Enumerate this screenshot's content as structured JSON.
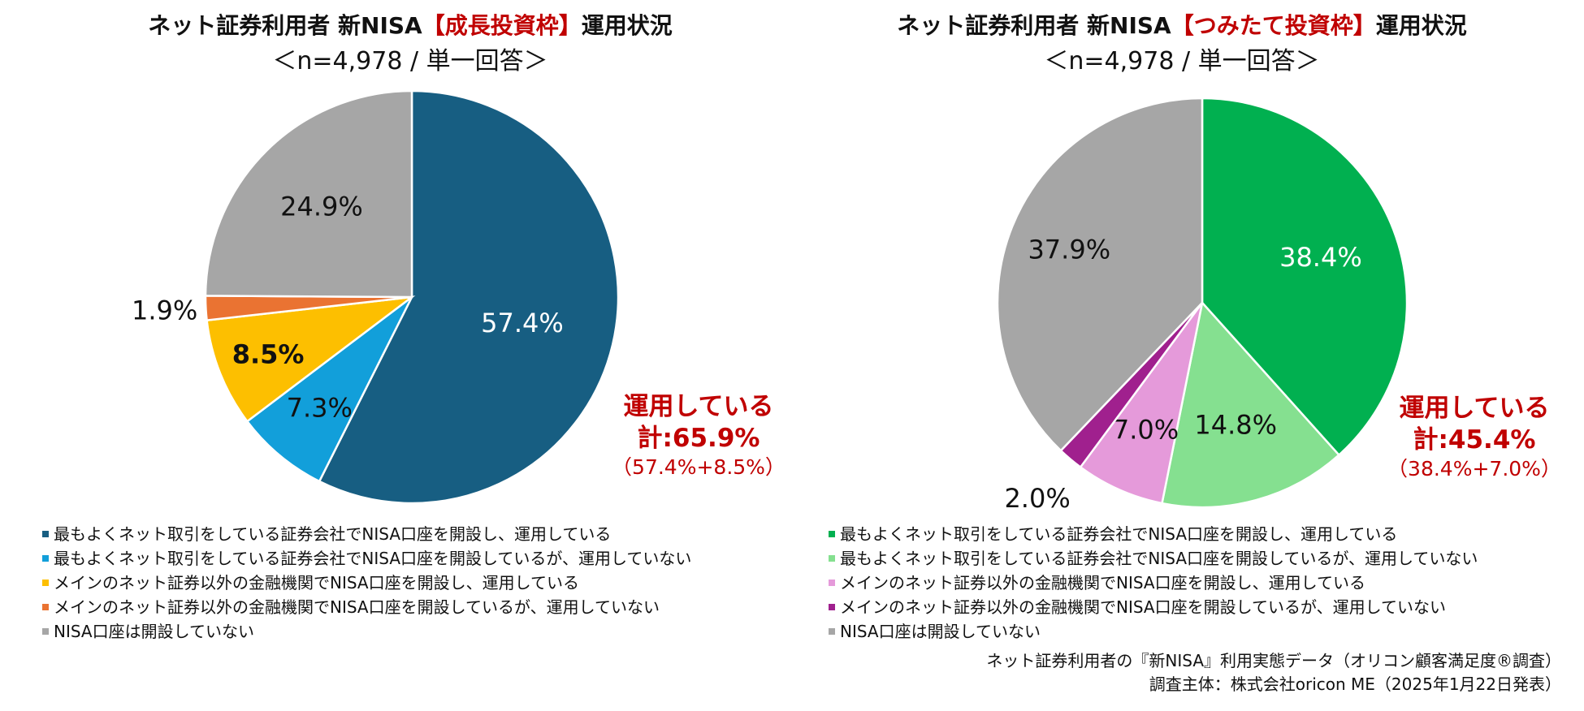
{
  "charts": [
    {
      "title_prefix": "ネット証券利用者  新NISA",
      "title_highlight": "【成長投資枠】",
      "title_suffix": "運用状況",
      "subtitle": "＜n=4,978 / 単一回答＞",
      "total_line1": "運用している",
      "total_line2": "計:65.9%",
      "total_line3": "（57.4%+8.5%）"
    },
    {
      "title_prefix": "ネット証券利用者 新NISA",
      "title_highlight": "【つみたて投資枠】",
      "title_suffix": "運用状況",
      "subtitle": "＜n=4,978 / 単一回答＞",
      "total_line1": "運用している",
      "total_line2": "計:45.4%",
      "total_line3": "（38.4%+7.0%）"
    }
  ],
  "chart_data": [
    {
      "type": "pie",
      "title": "ネット証券利用者 新NISA【成長投資枠】運用状況",
      "start": "12 o'clock, clockwise",
      "slices": [
        {
          "label": "最もよくネット取引をしている証券会社でNISA口座を開設し、運用している",
          "value": 57.4,
          "display": "57.4%",
          "color": "#175e82",
          "text_color": "#ffffff",
          "bold": false
        },
        {
          "label": "最もよくネット取引をしている証券会社でNISA口座を開設しているが、運用していない",
          "value": 7.3,
          "display": "7.3%",
          "color": "#129fda",
          "text_color": "#111111",
          "bold": false
        },
        {
          "label": "メインのネット証券以外の金融機関でNISA口座を開設し、運用している",
          "value": 8.5,
          "display": "8.5%",
          "color": "#fdbf00",
          "text_color": "#111111",
          "bold": true
        },
        {
          "label": "メインのネット証券以外の金融機関でNISA口座を開設しているが、運用していない",
          "value": 1.9,
          "display": "1.9%",
          "color": "#ea7332",
          "text_color": "#111111",
          "bold": false
        },
        {
          "label": "NISA口座は開設していない",
          "value": 24.9,
          "display": "24.9%",
          "color": "#a6a6a6",
          "text_color": "#111111",
          "bold": false
        }
      ]
    },
    {
      "type": "pie",
      "title": "ネット証券利用者 新NISA【つみたて投資枠】運用状況",
      "start": "12 o'clock, clockwise",
      "slices": [
        {
          "label": "最もよくネット取引をしている証券会社でNISA口座を開設し、運用している",
          "value": 38.4,
          "display": "38.4%",
          "color": "#01b050",
          "text_color": "#ffffff",
          "bold": false
        },
        {
          "label": "最もよくネット取引をしている証券会社でNISA口座を開設しているが、運用していない",
          "value": 14.8,
          "display": "14.8%",
          "color": "#85e090",
          "text_color": "#111111",
          "bold": false
        },
        {
          "label": "メインのネット証券以外の金融機関でNISA口座を開設し、運用している",
          "value": 7.0,
          "display": "7.0%",
          "color": "#e59ada",
          "text_color": "#111111",
          "bold": false
        },
        {
          "label": "メインのネット証券以外の金融機関でNISA口座を開設しているが、運用していない",
          "value": 2.0,
          "display": "2.0%",
          "color": "#a0208e",
          "text_color": "#111111",
          "bold": false
        },
        {
          "label": "NISA口座は開設していない",
          "value": 37.9,
          "display": "37.9%",
          "color": "#a6a6a6",
          "text_color": "#111111",
          "bold": false
        }
      ]
    }
  ],
  "footer": {
    "line1": "ネット証券利用者の『新NISA』利用実態データ（オリコン顧客満足度®調査）",
    "line2": "調査主体：株式会社oricon ME（2025年1月22日発表）"
  }
}
